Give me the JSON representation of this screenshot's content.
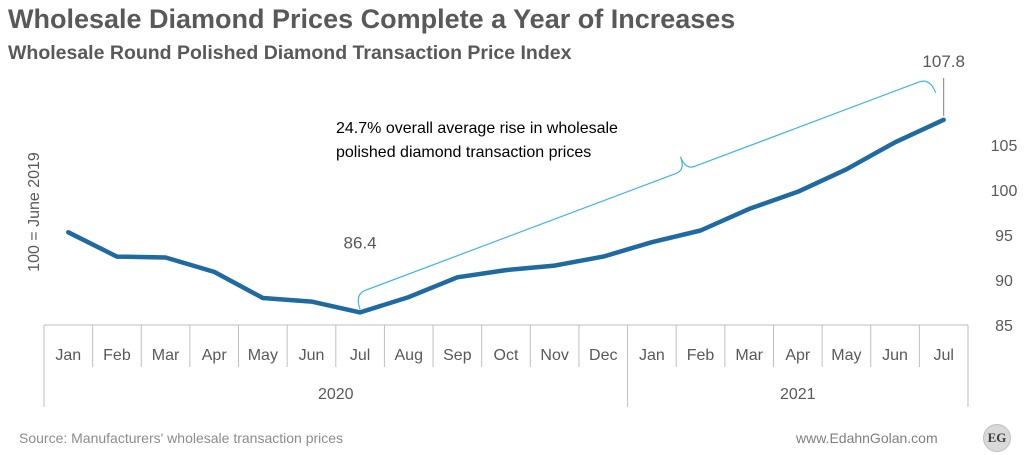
{
  "title": "Wholesale Diamond Prices Complete a Year of Increases",
  "subtitle": "Wholesale Round Polished Diamond Transaction Price Index",
  "source": "Source: Manufacturers' wholesale transaction prices",
  "website": "www.EdahnGolan.com",
  "logo_text": "EG",
  "colors": {
    "line": "#1f6aa0",
    "bracket": "#41b4e6",
    "text": "#595959"
  },
  "chart_data": {
    "type": "line",
    "title": "Wholesale Diamond Prices Complete a Year of Increases",
    "subtitle": "Wholesale Round Polished Diamond Transaction Price Index",
    "ylabel": "100 = June 2019",
    "ylim": [
      85,
      110
    ],
    "y_ticks": [
      85,
      90,
      95,
      100,
      105
    ],
    "y_axis_side": "right",
    "grid": false,
    "categories": [
      "Jan",
      "Feb",
      "Mar",
      "Apr",
      "May",
      "Jun",
      "Jul",
      "Aug",
      "Sep",
      "Oct",
      "Nov",
      "Dec",
      "Jan",
      "Feb",
      "Mar",
      "Apr",
      "May",
      "Jun",
      "Jul"
    ],
    "year_groups": [
      {
        "label": "2020",
        "start": 0,
        "count": 12
      },
      {
        "label": "2021",
        "start": 12,
        "count": 7
      }
    ],
    "series": [
      {
        "values": [
          95.3,
          92.6,
          92.5,
          90.9,
          88.0,
          87.6,
          86.4,
          88.1,
          90.3,
          91.1,
          91.6,
          92.6,
          94.2,
          95.5,
          97.9,
          99.8,
          102.3,
          105.3,
          107.8
        ]
      }
    ],
    "point_labels": [
      {
        "index": 6,
        "text": "86.4"
      },
      {
        "index": 18,
        "text": "107.8"
      }
    ],
    "annotation": {
      "lines": [
        "24.7% overall average rise in wholesale",
        "polished diamond transaction prices"
      ],
      "from_index": 6,
      "to_index": 18
    }
  }
}
